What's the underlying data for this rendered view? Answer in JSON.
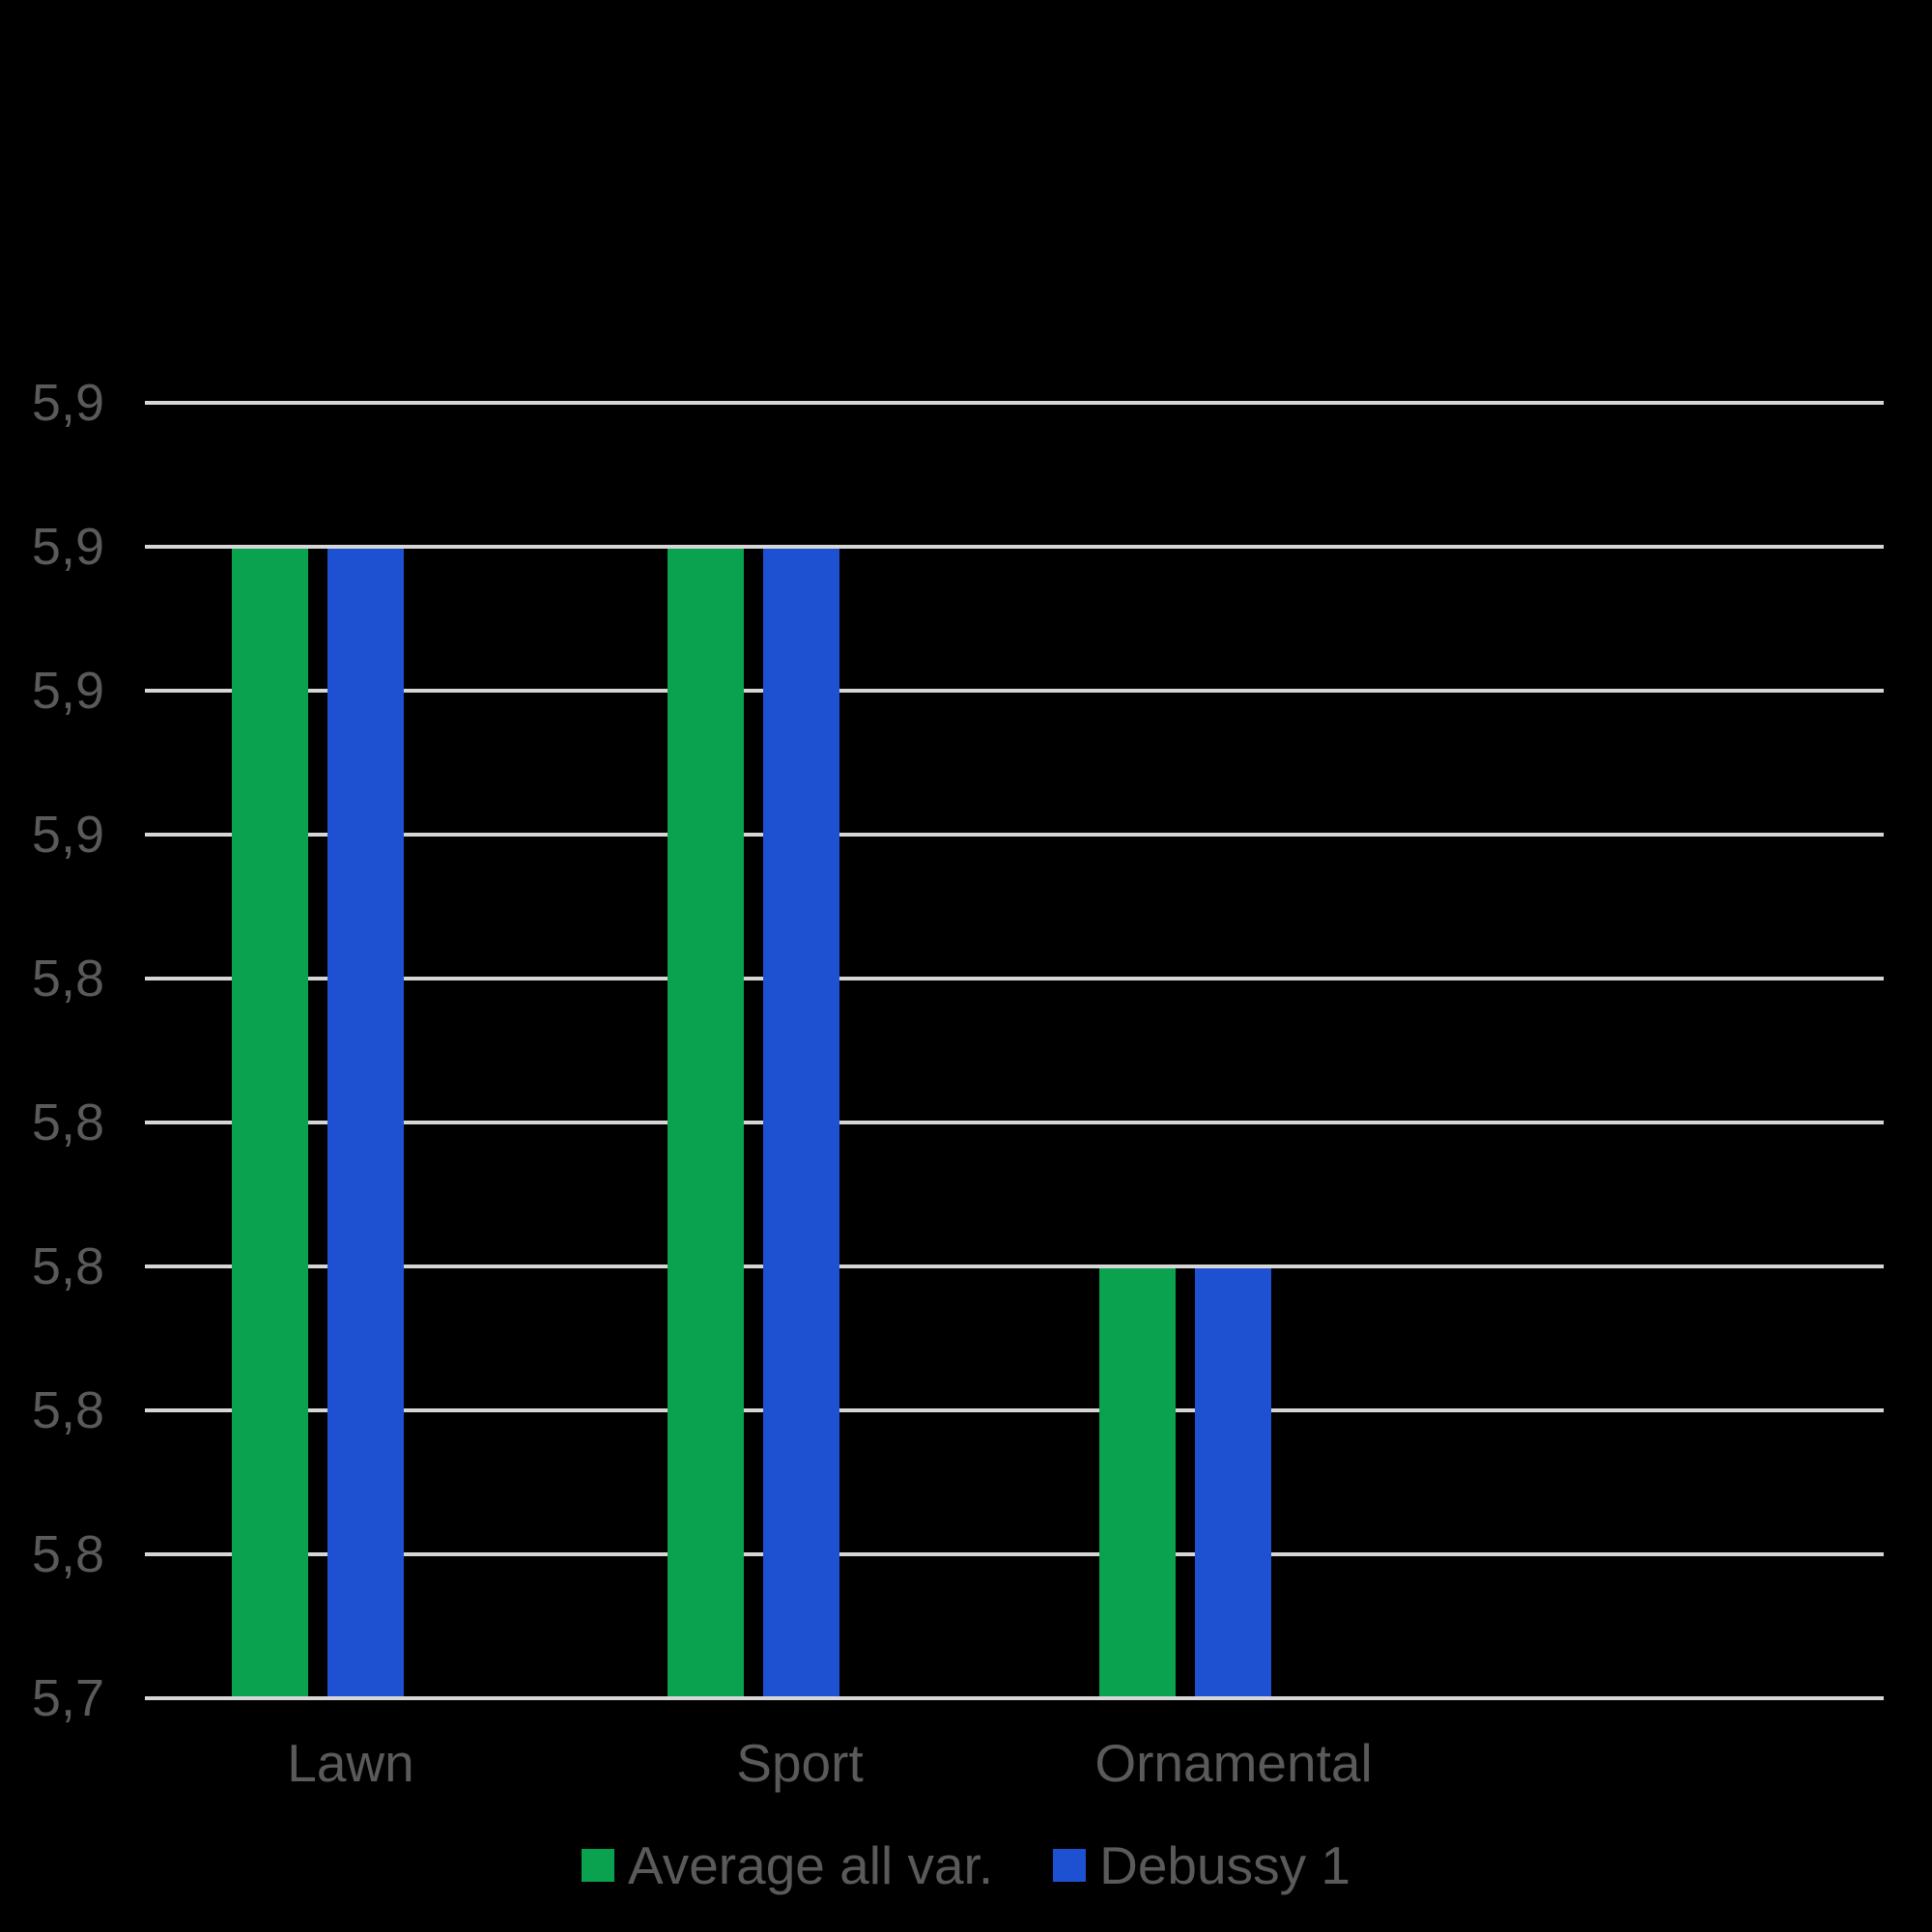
{
  "chart_data": {
    "type": "bar",
    "title": "",
    "xlabel": "",
    "ylabel": "",
    "categories": [
      "Lawn",
      "Sport",
      "Ornamental"
    ],
    "series": [
      {
        "name": "Average all var.",
        "color": "#0AA14F",
        "values": [
          5.9,
          5.9,
          5.8
        ]
      },
      {
        "name": "Debussy 1",
        "color": "#1E51D1",
        "values": [
          5.9,
          5.9,
          5.8
        ]
      }
    ],
    "y_axis": {
      "min": 5.74,
      "max": 5.92,
      "step": 0.02,
      "decimal_separator": ",",
      "tick_labels_top_to_bottom": [
        "5,9",
        "5,9",
        "5,9",
        "5,9",
        "5,8",
        "5,8",
        "5,8",
        "5,8",
        "5,8",
        "5,7"
      ]
    },
    "grid": true,
    "legend_position": "bottom",
    "colors": {
      "background": "#000000",
      "gridline": "#D6D6D6",
      "text": "#5A5A5A"
    }
  }
}
